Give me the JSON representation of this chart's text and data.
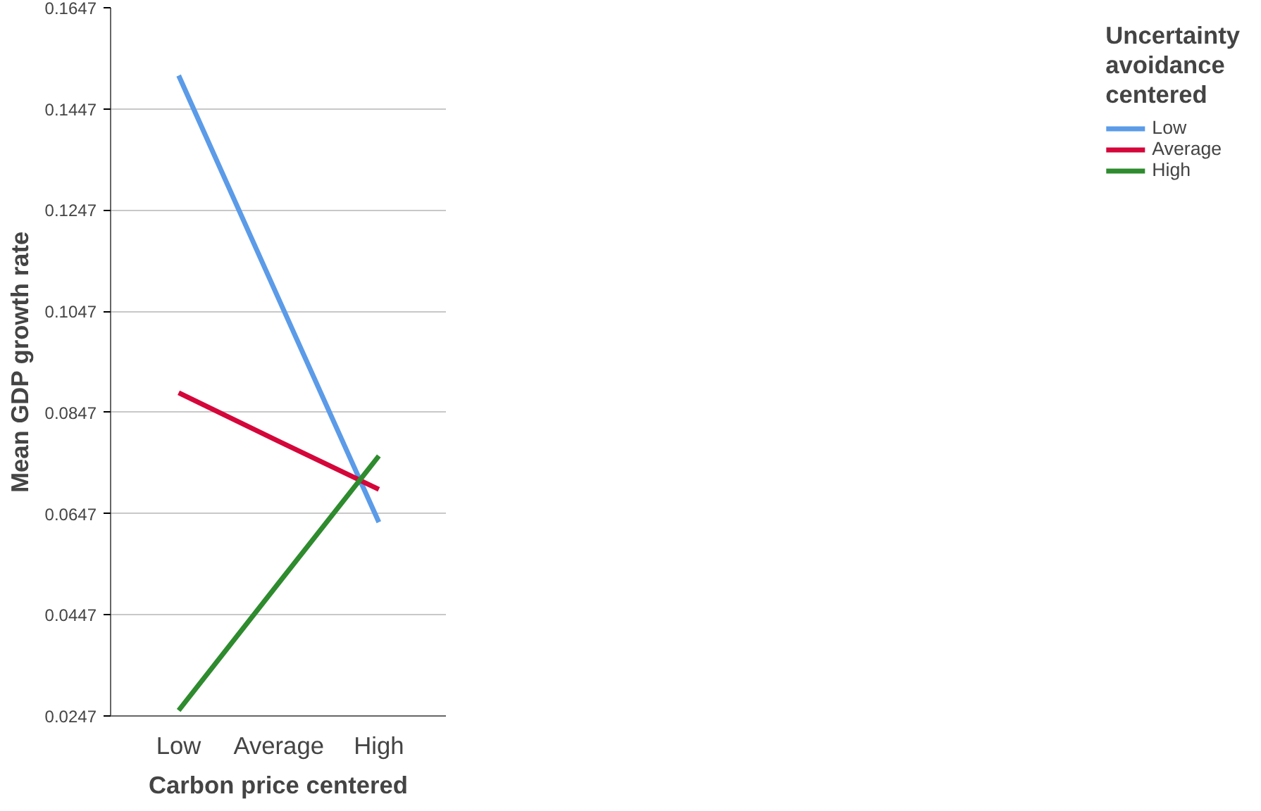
{
  "chart_data": {
    "type": "line",
    "xlabel": "Carbon price centered",
    "ylabel": "Mean GDP growth rate",
    "legend_title": "Uncertainty avoidance centered",
    "categories": [
      "Low",
      "Average",
      "High"
    ],
    "series": [
      {
        "name": "Low",
        "color": "#5b9be8",
        "values": [
          0.1513,
          0.1071,
          0.063
        ]
      },
      {
        "name": "Average",
        "color": "#d4063a",
        "values": [
          0.0886,
          0.079,
          0.0695
        ]
      },
      {
        "name": "High",
        "color": "#2e8b2e",
        "values": [
          0.0258,
          0.051,
          0.0761
        ]
      }
    ],
    "ylim": [
      0.0247,
      0.1647
    ],
    "yticks": [
      0.0247,
      0.0447,
      0.0647,
      0.0847,
      0.1047,
      0.1247,
      0.1447,
      0.1647
    ],
    "grid": "y",
    "legend": "top right",
    "marker": "none",
    "line_style": "solid"
  }
}
